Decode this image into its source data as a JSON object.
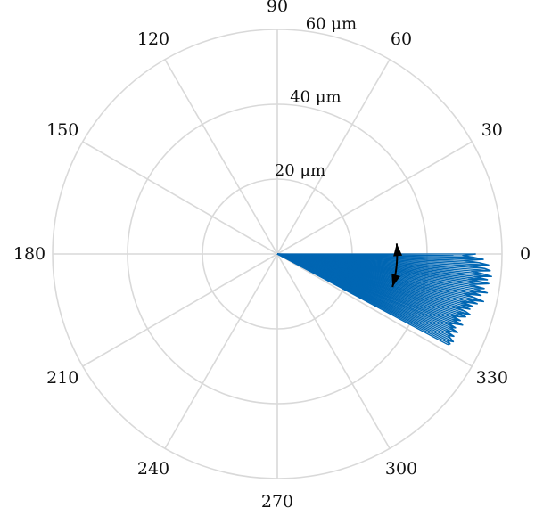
{
  "chart_data": {
    "type": "polar-line",
    "title": "",
    "theta_ticks": [
      0,
      30,
      60,
      90,
      120,
      150,
      180,
      210,
      240,
      270,
      300,
      330
    ],
    "r_range": [
      0,
      60
    ],
    "r_rings": [
      20,
      40,
      60
    ],
    "r_ring_labels": [
      "20 μm",
      "40 μm",
      "60 μm"
    ],
    "grid": true,
    "grid_color": "#d9d9d9",
    "series_color": "#0066b3",
    "arrow_color": "#000000",
    "annotation": {
      "type": "double-headed-arc-arrow",
      "r": 32,
      "theta_start": 5,
      "theta_end": -16
    },
    "series": [
      {
        "theta_deg": [
          0.0,
          -0.5,
          -1.0,
          -1.5,
          -2.0,
          -2.5,
          -3.0,
          -3.5,
          -4.0,
          -4.5,
          -5.0,
          -5.5,
          -6.0,
          -6.5,
          -7.0,
          -7.5,
          -8.0,
          -8.5,
          -9.0,
          -9.5,
          -10.0,
          -10.5,
          -11.0,
          -11.5,
          -12.0,
          -12.5,
          -13.0,
          -13.5,
          -14.0,
          -14.5,
          -15.0,
          -15.5,
          -16.0,
          -16.5,
          -17.0,
          -17.5,
          -18.0,
          -18.5,
          -19.0,
          -19.5,
          -20.0,
          -20.5,
          -21.0,
          -21.5,
          -22.0,
          -22.5,
          -23.0,
          -23.5,
          -24.0,
          -24.5,
          -25.0,
          -25.5,
          -26.0,
          -26.5,
          -27.0,
          -27.5,
          -28.0
        ],
        "r": [
          53.0,
          49.5,
          52.5,
          55.0,
          50.0,
          54.0,
          56.5,
          51.0,
          55.5,
          57.0,
          52.0,
          55.0,
          57.5,
          53.0,
          56.5,
          51.5,
          57.0,
          54.5,
          52.0,
          56.0,
          53.5,
          57.0,
          52.5,
          55.5,
          51.0,
          54.0,
          56.5,
          52.5,
          55.0,
          50.5,
          54.0,
          51.0,
          53.5,
          49.5,
          52.5,
          54.0,
          50.5,
          53.0,
          51.5,
          49.5,
          52.0,
          50.0,
          53.0,
          51.0,
          49.0,
          51.5,
          50.0,
          52.5,
          51.0,
          49.5,
          52.0,
          50.5,
          51.5,
          52.5,
          51.0,
          52.0,
          51.5
        ]
      }
    ]
  }
}
